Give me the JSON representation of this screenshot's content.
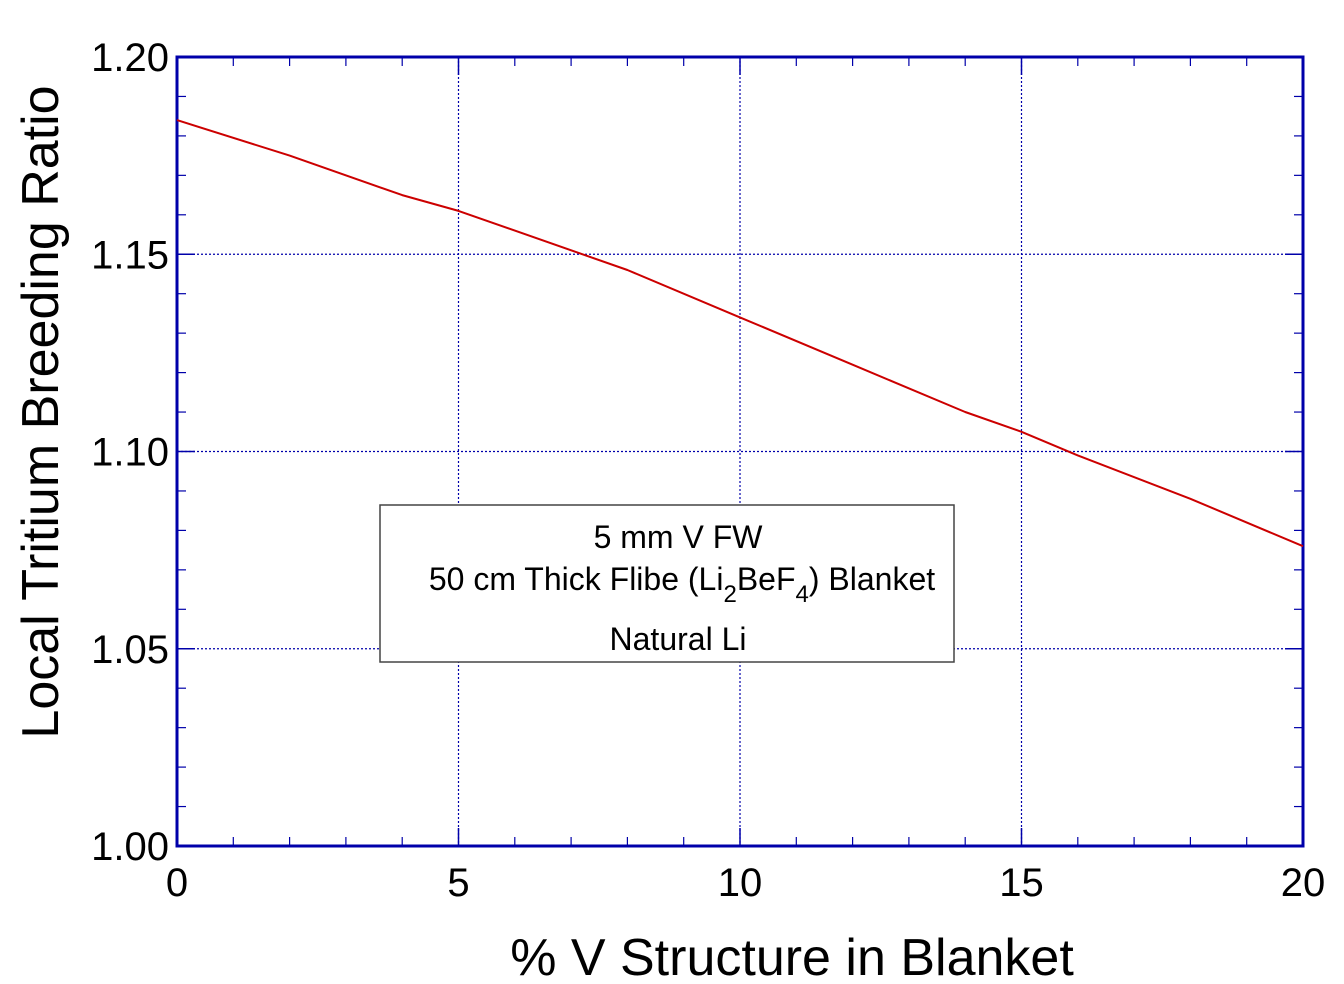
{
  "chart_data": {
    "type": "line",
    "xlabel": "% V Structure in Blanket",
    "ylabel": "Local Tritium Breeding Ratio",
    "xlim": [
      0,
      20
    ],
    "ylim": [
      1.0,
      1.2
    ],
    "x_ticks": [
      "0",
      "5",
      "10",
      "15",
      "20"
    ],
    "y_ticks": [
      "1.00",
      "1.05",
      "1.10",
      "1.15",
      "1.20"
    ],
    "grid": true,
    "series": [
      {
        "color": "#cc0000",
        "x": [
          0,
          2,
          4,
          5,
          6,
          8,
          10,
          12,
          14,
          15,
          16,
          18,
          20
        ],
        "y": [
          1.184,
          1.175,
          1.165,
          1.161,
          1.156,
          1.146,
          1.134,
          1.122,
          1.11,
          1.105,
          1.099,
          1.088,
          1.076
        ]
      }
    ],
    "annotation": {
      "line1": "5 mm V FW",
      "line2_prefix": "50 cm Thick Flibe (Li",
      "line2_sub1": "2",
      "line2_mid": "BeF",
      "line2_sub2": "4",
      "line2_suffix": ") Blanket",
      "line3": "Natural Li"
    },
    "colors": {
      "axis": "#0000aa",
      "grid": "#0000aa",
      "line": "#cc0000"
    }
  }
}
